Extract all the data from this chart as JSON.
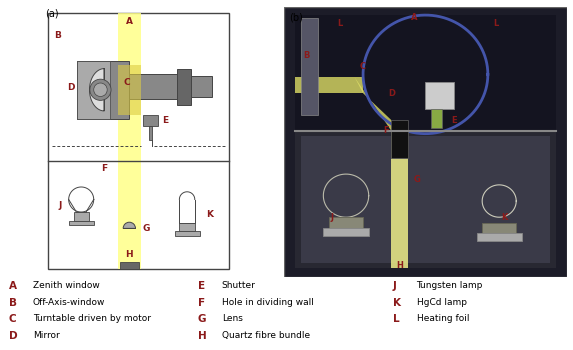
{
  "fig_label_a": "(a)",
  "fig_label_b": "(b)",
  "legend_items": [
    {
      "letter": "A",
      "description": "Zenith window"
    },
    {
      "letter": "B",
      "description": "Off-Axis-window"
    },
    {
      "letter": "C",
      "description": "Turntable driven by motor"
    },
    {
      "letter": "D",
      "description": "Mirror"
    },
    {
      "letter": "E",
      "description": "Shutter"
    },
    {
      "letter": "F",
      "description": "Hole in dividing wall"
    },
    {
      "letter": "G",
      "description": "Lens"
    },
    {
      "letter": "H",
      "description": "Quartz fibre bundle"
    },
    {
      "letter": "J",
      "description": "Tungsten lamp"
    },
    {
      "letter": "K",
      "description": "HgCd lamp"
    },
    {
      "letter": "L",
      "description": "Heating foil"
    }
  ],
  "label_color": "#8B1A1A",
  "background_color": "#ffffff",
  "border_color": "#444444",
  "beam_yellow": "#FFFF88",
  "beam_yellow_dark": "#DDCC44",
  "component_dark": "#666666",
  "component_mid": "#888888",
  "component_light": "#aaaaaa",
  "component_white": "#dddddd"
}
